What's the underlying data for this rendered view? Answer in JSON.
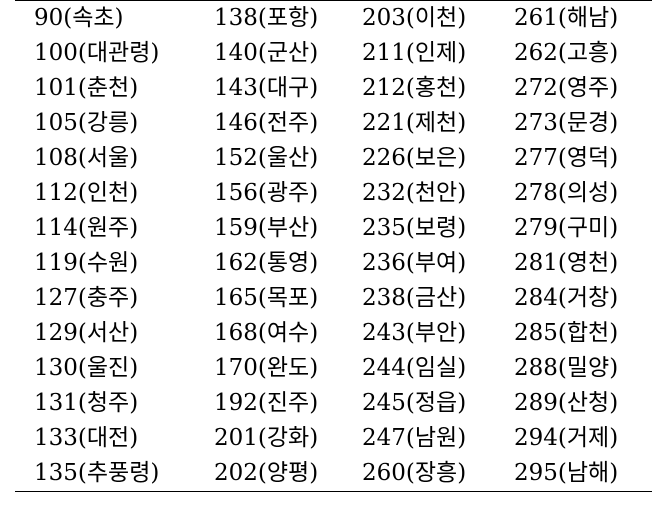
{
  "table": {
    "rows": [
      [
        "90(속초)",
        "138(포항)",
        "203(이천)",
        "261(해남)"
      ],
      [
        "100(대관령)",
        "140(군산)",
        "211(인제)",
        "262(고흥)"
      ],
      [
        "101(춘천)",
        "143(대구)",
        "212(홍천)",
        "272(영주)"
      ],
      [
        "105(강릉)",
        "146(전주)",
        "221(제천)",
        "273(문경)"
      ],
      [
        "108(서울)",
        "152(울산)",
        "226(보은)",
        "277(영덕)"
      ],
      [
        "112(인천)",
        "156(광주)",
        "232(천안)",
        "278(의성)"
      ],
      [
        "114(원주)",
        "159(부산)",
        "235(보령)",
        "279(구미)"
      ],
      [
        "119(수원)",
        "162(통영)",
        "236(부여)",
        "281(영천)"
      ],
      [
        "127(충주)",
        "165(목포)",
        "238(금산)",
        "284(거창)"
      ],
      [
        "129(서산)",
        "168(여수)",
        "243(부안)",
        "285(합천)"
      ],
      [
        "130(울진)",
        "170(완도)",
        "244(임실)",
        "288(밀양)"
      ],
      [
        "131(청주)",
        "192(진주)",
        "245(정읍)",
        "289(산청)"
      ],
      [
        "133(대전)",
        "201(강화)",
        "247(남원)",
        "294(거제)"
      ],
      [
        "135(추풍령)",
        "202(양평)",
        "260(장흥)",
        "295(남해)"
      ]
    ]
  }
}
